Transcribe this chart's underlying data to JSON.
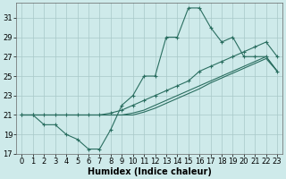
{
  "xlabel": "Humidex (Indice chaleur)",
  "bg_color": "#ceeaea",
  "grid_color": "#a8c8c8",
  "line_color": "#2a6e60",
  "x": [
    0,
    1,
    2,
    3,
    4,
    5,
    6,
    7,
    8,
    9,
    10,
    11,
    12,
    13,
    14,
    15,
    16,
    17,
    18,
    19,
    20,
    21,
    22,
    23
  ],
  "y_main": [
    21,
    21,
    20,
    20,
    19,
    18.5,
    17.5,
    17.5,
    19.5,
    22,
    23,
    25,
    25,
    29,
    29,
    32,
    32,
    30,
    28.5,
    29,
    27,
    27,
    27,
    25.5
  ],
  "y_upper": [
    21,
    21,
    21,
    21,
    21,
    21,
    21,
    21,
    21.2,
    21.5,
    22,
    22.5,
    23,
    23.5,
    24,
    24.5,
    25.5,
    26,
    26.5,
    27,
    27.5,
    28,
    28.5,
    27
  ],
  "y_lower": [
    21,
    21,
    21,
    21,
    21,
    21,
    21,
    21,
    21,
    21,
    21.2,
    21.5,
    22,
    22.5,
    23,
    23.5,
    24,
    24.5,
    25,
    25.5,
    26,
    26.5,
    27,
    25.5
  ],
  "y_line2": [
    21,
    21,
    21,
    21,
    21,
    21,
    21,
    21,
    21,
    21,
    21,
    21.3,
    21.7,
    22.2,
    22.7,
    23.2,
    23.7,
    24.3,
    24.8,
    25.3,
    25.8,
    26.3,
    26.8,
    25.5
  ],
  "xlim": [
    -0.5,
    23.5
  ],
  "ylim": [
    17,
    32.5
  ],
  "yticks": [
    17,
    19,
    21,
    23,
    25,
    27,
    29,
    31
  ],
  "xticks": [
    0,
    1,
    2,
    3,
    4,
    5,
    6,
    7,
    8,
    9,
    10,
    11,
    12,
    13,
    14,
    15,
    16,
    17,
    18,
    19,
    20,
    21,
    22,
    23
  ],
  "label_fontsize": 7,
  "tick_fontsize": 6
}
